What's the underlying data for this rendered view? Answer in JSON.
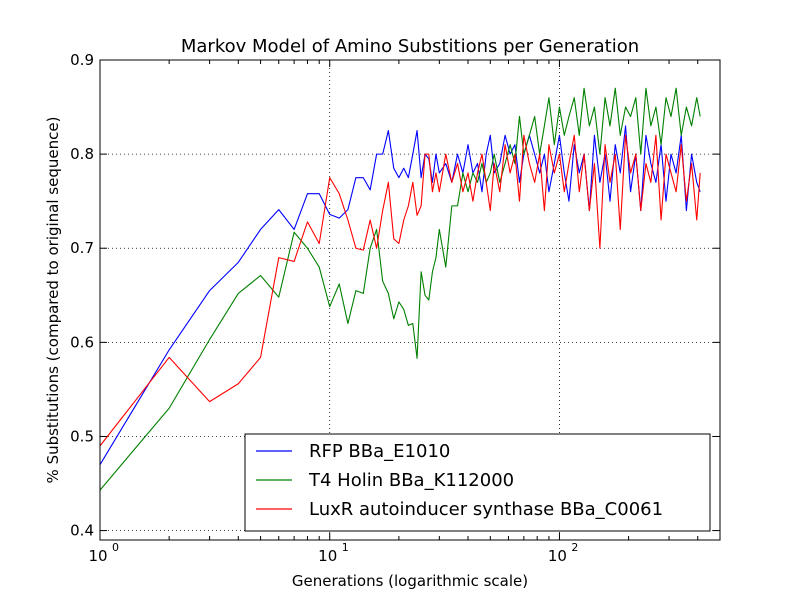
{
  "chart_data": {
    "type": "line",
    "title": "Markov Model of Amino Substitions per Generation",
    "xlabel": "Generations (logarithmic scale)",
    "ylabel": "% Substitutions (compared to original sequence)",
    "x_scale": "log",
    "xlim": [
      1,
      500
    ],
    "ylim": [
      0.39,
      0.9
    ],
    "x_ticks": [
      {
        "value": 1,
        "base": "10",
        "exp": "0"
      },
      {
        "value": 10,
        "base": "10",
        "exp": "1"
      },
      {
        "value": 100,
        "base": "10",
        "exp": "2"
      }
    ],
    "y_ticks": [
      0.4,
      0.5,
      0.6,
      0.7,
      0.8,
      0.9
    ],
    "y_tick_labels": [
      "0.4",
      "0.5",
      "0.6",
      "0.7",
      "0.8",
      "0.9"
    ],
    "grid": true,
    "legend_position": "lower-right",
    "series": [
      {
        "name": "RFP BBa_E1010",
        "color": "#0000ff",
        "x": [
          1,
          2,
          3,
          4,
          5,
          6,
          7,
          8,
          9,
          10,
          11,
          12,
          13,
          14,
          15,
          16,
          17,
          18,
          19,
          20,
          21,
          22,
          23,
          24,
          25,
          26,
          27,
          28,
          29,
          30,
          32,
          34,
          36,
          38,
          40,
          42,
          44,
          46,
          48,
          50,
          52,
          55,
          58,
          61,
          64,
          67,
          70,
          74,
          78,
          82,
          86,
          90,
          95,
          100,
          105,
          110,
          116,
          122,
          128,
          135,
          142,
          150,
          158,
          166,
          175,
          184,
          194,
          204,
          215,
          226,
          238,
          250,
          263,
          277,
          291,
          306,
          322,
          339,
          357,
          376,
          396,
          410
        ],
        "y": [
          0.47,
          0.592,
          0.655,
          0.685,
          0.72,
          0.741,
          0.72,
          0.758,
          0.758,
          0.736,
          0.732,
          0.741,
          0.775,
          0.775,
          0.762,
          0.8,
          0.8,
          0.825,
          0.785,
          0.775,
          0.785,
          0.775,
          0.8,
          0.825,
          0.775,
          0.8,
          0.795,
          0.77,
          0.8,
          0.78,
          0.79,
          0.77,
          0.8,
          0.78,
          0.81,
          0.78,
          0.79,
          0.76,
          0.8,
          0.82,
          0.78,
          0.79,
          0.82,
          0.8,
          0.81,
          0.77,
          0.8,
          0.82,
          0.8,
          0.78,
          0.8,
          0.76,
          0.79,
          0.82,
          0.78,
          0.75,
          0.81,
          0.78,
          0.8,
          0.74,
          0.82,
          0.77,
          0.8,
          0.75,
          0.81,
          0.78,
          0.83,
          0.76,
          0.8,
          0.74,
          0.82,
          0.79,
          0.77,
          0.81,
          0.75,
          0.8,
          0.78,
          0.82,
          0.74,
          0.8,
          0.77,
          0.76
        ]
      },
      {
        "name": "T4 Holin BBa_K112000",
        "color": "#008000",
        "x": [
          1,
          2,
          3,
          4,
          5,
          6,
          7,
          8,
          9,
          10,
          11,
          12,
          13,
          14,
          15,
          16,
          17,
          18,
          19,
          20,
          21,
          22,
          23,
          24,
          25,
          26,
          27,
          28,
          29,
          30,
          32,
          34,
          36,
          38,
          40,
          42,
          44,
          46,
          48,
          50,
          52,
          55,
          58,
          61,
          64,
          67,
          70,
          74,
          78,
          82,
          86,
          90,
          95,
          100,
          105,
          110,
          116,
          122,
          128,
          135,
          142,
          150,
          158,
          166,
          175,
          184,
          194,
          204,
          215,
          226,
          238,
          250,
          263,
          277,
          291,
          306,
          322,
          339,
          357,
          376,
          396,
          410
        ],
        "y": [
          0.443,
          0.53,
          0.603,
          0.652,
          0.671,
          0.648,
          0.717,
          0.7,
          0.68,
          0.638,
          0.662,
          0.62,
          0.655,
          0.652,
          0.7,
          0.72,
          0.665,
          0.652,
          0.625,
          0.643,
          0.635,
          0.618,
          0.62,
          0.583,
          0.675,
          0.65,
          0.645,
          0.675,
          0.69,
          0.72,
          0.68,
          0.745,
          0.745,
          0.78,
          0.76,
          0.78,
          0.77,
          0.79,
          0.77,
          0.78,
          0.8,
          0.77,
          0.79,
          0.81,
          0.79,
          0.84,
          0.8,
          0.82,
          0.84,
          0.8,
          0.83,
          0.86,
          0.81,
          0.85,
          0.82,
          0.84,
          0.86,
          0.82,
          0.87,
          0.83,
          0.85,
          0.8,
          0.86,
          0.83,
          0.87,
          0.82,
          0.85,
          0.84,
          0.86,
          0.8,
          0.87,
          0.83,
          0.85,
          0.81,
          0.86,
          0.84,
          0.87,
          0.82,
          0.85,
          0.83,
          0.86,
          0.84
        ]
      },
      {
        "name": "LuxR autoinducer synthase BBa_C0061",
        "color": "#ff0000",
        "x": [
          1,
          2,
          3,
          4,
          5,
          6,
          7,
          8,
          9,
          10,
          11,
          12,
          13,
          14,
          15,
          16,
          17,
          18,
          19,
          20,
          21,
          22,
          23,
          24,
          25,
          26,
          27,
          28,
          29,
          30,
          32,
          34,
          36,
          38,
          40,
          42,
          44,
          46,
          48,
          50,
          52,
          55,
          58,
          61,
          64,
          67,
          70,
          74,
          78,
          82,
          86,
          90,
          95,
          100,
          105,
          110,
          116,
          122,
          128,
          135,
          142,
          150,
          158,
          166,
          175,
          184,
          194,
          204,
          215,
          226,
          238,
          250,
          263,
          277,
          291,
          306,
          322,
          339,
          357,
          376,
          396,
          410
        ],
        "y": [
          0.49,
          0.584,
          0.537,
          0.556,
          0.584,
          0.69,
          0.686,
          0.728,
          0.705,
          0.775,
          0.758,
          0.73,
          0.7,
          0.698,
          0.73,
          0.7,
          0.74,
          0.77,
          0.71,
          0.705,
          0.73,
          0.745,
          0.77,
          0.735,
          0.745,
          0.8,
          0.8,
          0.76,
          0.78,
          0.76,
          0.8,
          0.77,
          0.79,
          0.76,
          0.78,
          0.75,
          0.78,
          0.8,
          0.77,
          0.74,
          0.79,
          0.76,
          0.81,
          0.78,
          0.8,
          0.75,
          0.82,
          0.79,
          0.77,
          0.8,
          0.74,
          0.81,
          0.78,
          0.8,
          0.76,
          0.79,
          0.82,
          0.76,
          0.8,
          0.74,
          0.79,
          0.7,
          0.81,
          0.77,
          0.8,
          0.72,
          0.82,
          0.78,
          0.8,
          0.74,
          0.79,
          0.77,
          0.82,
          0.73,
          0.8,
          0.78,
          0.76,
          0.81,
          0.75,
          0.79,
          0.73,
          0.78
        ]
      }
    ]
  }
}
